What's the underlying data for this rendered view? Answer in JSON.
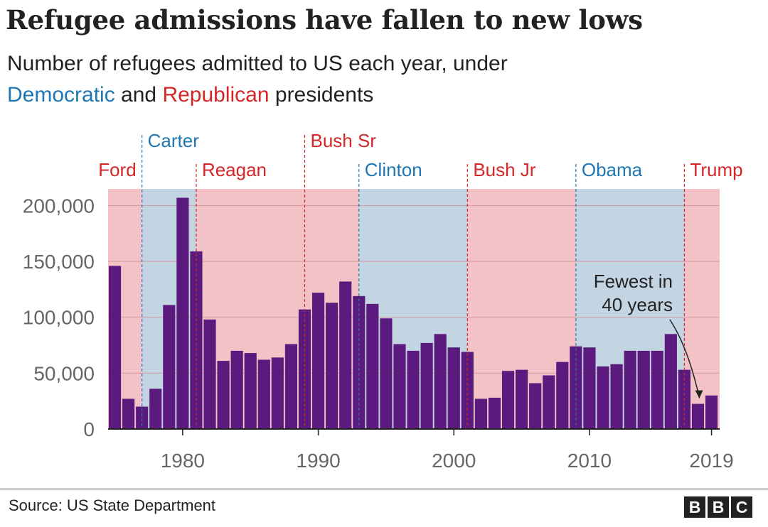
{
  "title": "Refugee admissions have fallen to new lows",
  "subtitle": {
    "line1": "Number of refugees admitted to US each year, under",
    "dem_word": "Democratic",
    "and_word": " and ",
    "rep_word": "Republican",
    "end_word": " presidents"
  },
  "colors": {
    "dem_band": "#c3d4e3",
    "rep_band": "#f2c2c7",
    "dem_text": "#1f78b4",
    "rep_text": "#d62728",
    "bar": "#5b1a7e",
    "grid": "#d99aa2",
    "axis": "#222222",
    "tick_text": "#666666"
  },
  "chart_data": {
    "type": "bar",
    "title": "Refugee admissions have fallen to new lows",
    "xlabel": "",
    "ylabel": "",
    "x_range": [
      1975,
      2019
    ],
    "ylim": [
      0,
      220000
    ],
    "grid": true,
    "x": [
      1975,
      1976,
      1977,
      1978,
      1979,
      1980,
      1981,
      1982,
      1983,
      1984,
      1985,
      1986,
      1987,
      1988,
      1989,
      1990,
      1991,
      1992,
      1993,
      1994,
      1995,
      1996,
      1997,
      1998,
      1999,
      2000,
      2001,
      2002,
      2003,
      2004,
      2005,
      2006,
      2007,
      2008,
      2009,
      2010,
      2011,
      2012,
      2013,
      2014,
      2015,
      2016,
      2017,
      2018,
      2019
    ],
    "values": [
      146000,
      27000,
      20000,
      36000,
      111000,
      207000,
      159000,
      98000,
      61000,
      70000,
      68000,
      62000,
      64000,
      76000,
      107000,
      122000,
      113000,
      132000,
      119000,
      112000,
      99000,
      76000,
      70000,
      77000,
      85000,
      73000,
      69000,
      27000,
      28000,
      52000,
      53000,
      41000,
      48000,
      60000,
      74000,
      73000,
      56000,
      58000,
      70000,
      70000,
      70000,
      85000,
      53000,
      22500,
      30000
    ],
    "y_ticks": [
      0,
      50000,
      100000,
      150000,
      200000
    ],
    "y_tick_labels": [
      "0",
      "50,000",
      "100,000",
      "150,000",
      "200,000"
    ],
    "x_ticks": [
      1980,
      1990,
      2000,
      2010,
      2019
    ],
    "x_tick_labels": [
      "1980",
      "1990",
      "2000",
      "2010",
      "2019"
    ],
    "presidencies": [
      {
        "name": "Ford",
        "party": "R",
        "start": 1974.5,
        "end": 1977
      },
      {
        "name": "Carter",
        "party": "D",
        "start": 1977,
        "end": 1981
      },
      {
        "name": "Reagan",
        "party": "R",
        "start": 1981,
        "end": 1989
      },
      {
        "name": "Bush Sr",
        "party": "R",
        "start": 1989,
        "end": 1993
      },
      {
        "name": "Clinton",
        "party": "D",
        "start": 1993,
        "end": 2001
      },
      {
        "name": "Bush Jr",
        "party": "R",
        "start": 2001,
        "end": 2009
      },
      {
        "name": "Obama",
        "party": "D",
        "start": 2009,
        "end": 2017
      },
      {
        "name": "Trump",
        "party": "R",
        "start": 2017,
        "end": 2019.6
      }
    ],
    "annotation": {
      "line1": "Fewest in",
      "line2": "40 years",
      "year": 2018,
      "value": 22500
    }
  },
  "source": "Source: US State Department",
  "logo": [
    "B",
    "B",
    "C"
  ]
}
